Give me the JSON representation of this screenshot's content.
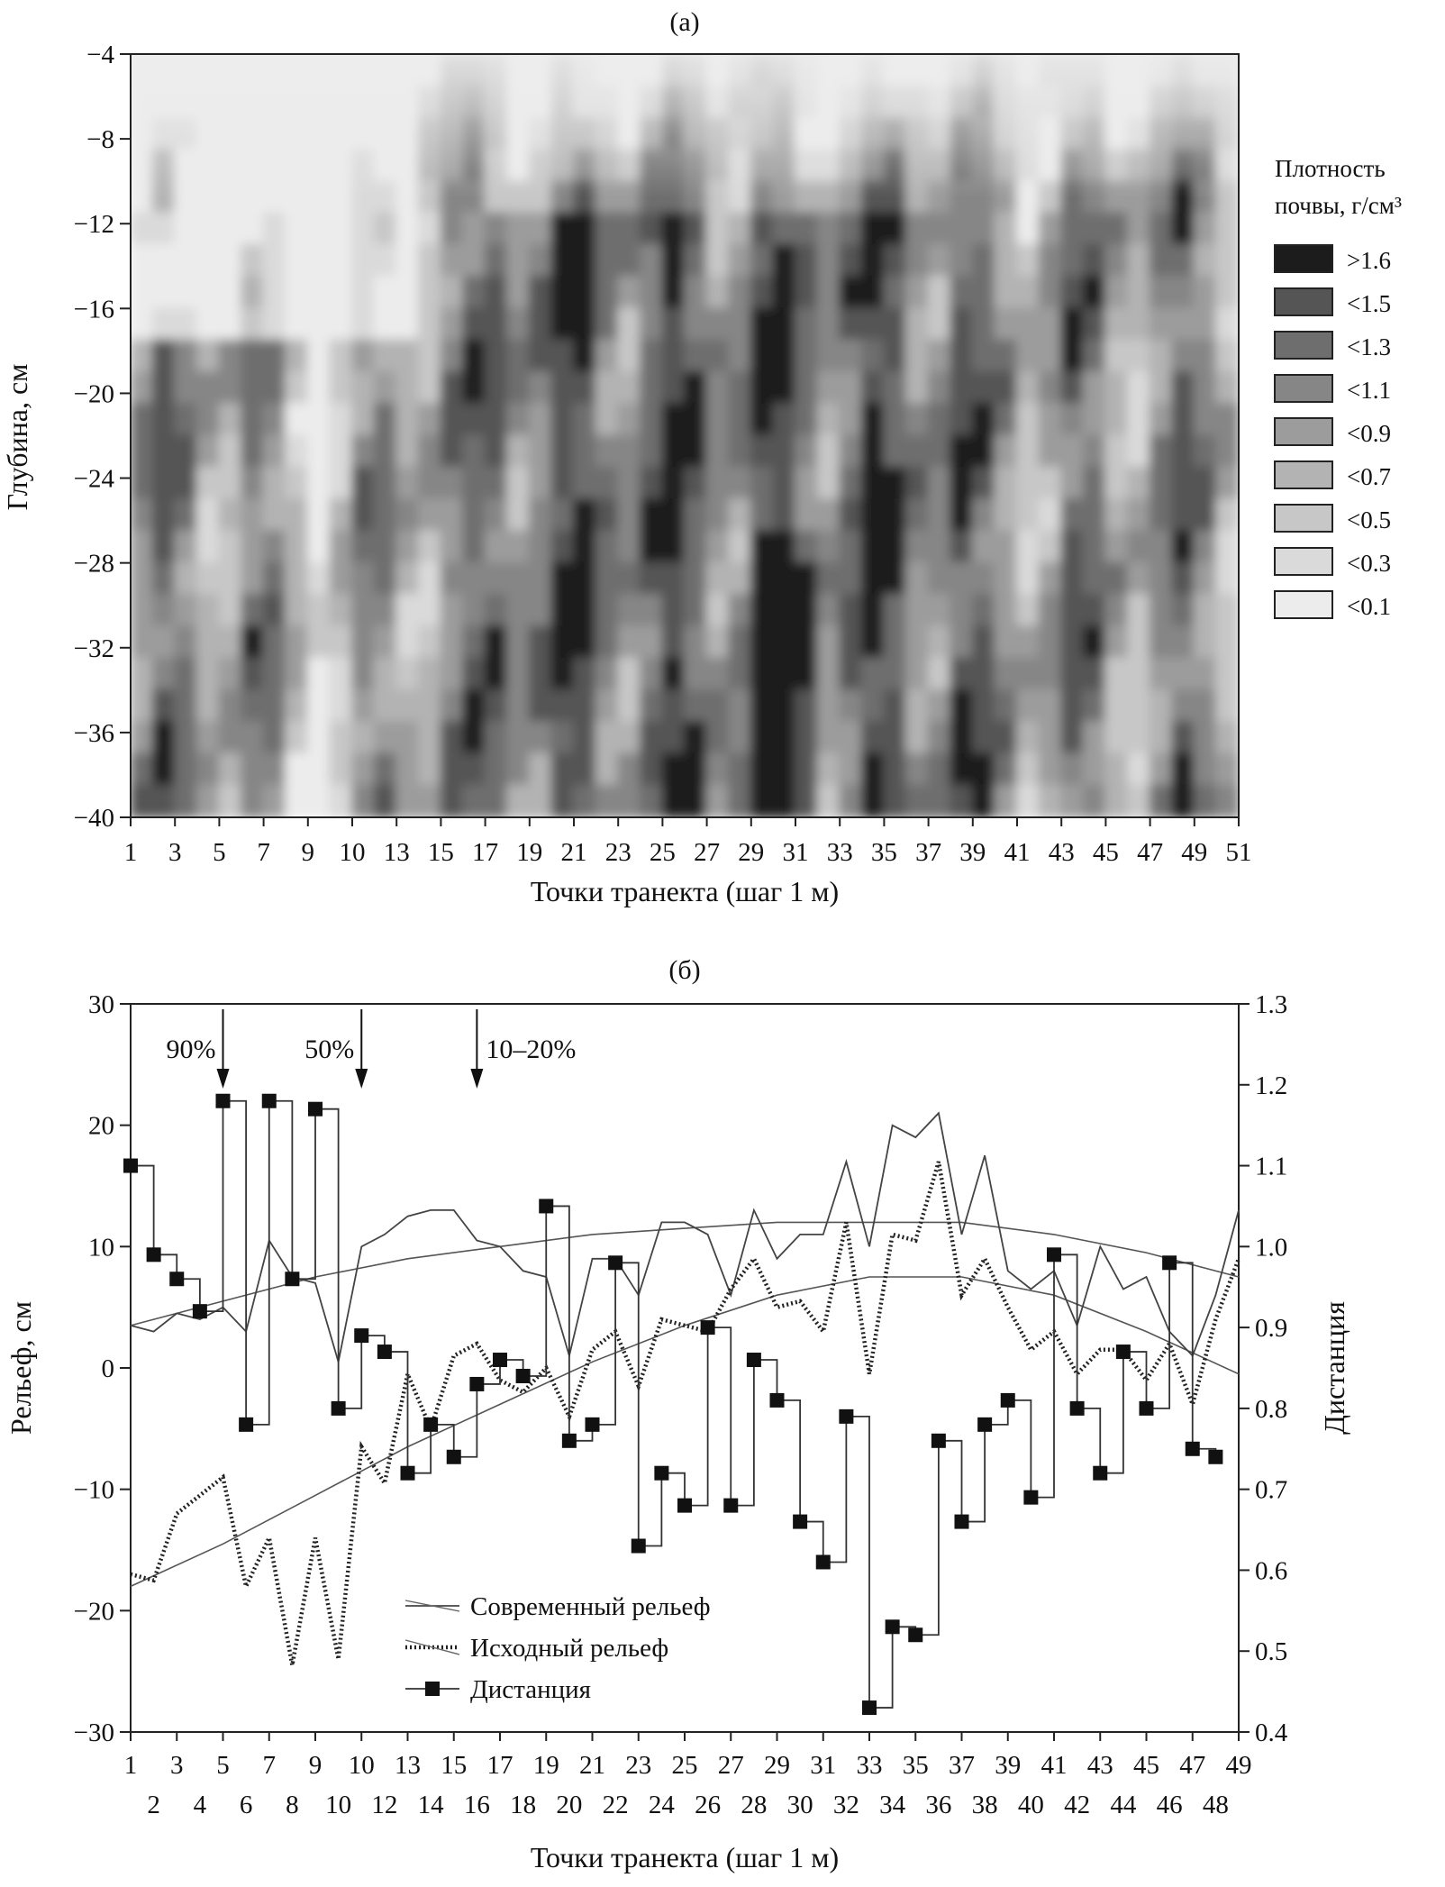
{
  "chart_data": [
    {
      "type": "heatmap",
      "panel_label": "(а)",
      "xlabel": "Точки транекта (шаг 1 м)",
      "ylabel": "Глубина, см",
      "x_ticks": [
        "1",
        "3",
        "5",
        "7",
        "9",
        "10",
        "13",
        "15",
        "17",
        "19",
        "21",
        "23",
        "25",
        "27",
        "29",
        "31",
        "33",
        "35",
        "37",
        "39",
        "41",
        "43",
        "45",
        "47",
        "49",
        "51"
      ],
      "y_ticks": [
        "−4",
        "−8",
        "−12",
        "−16",
        "−20",
        "−24",
        "−28",
        "−32",
        "−36",
        "−40"
      ],
      "xlim": [
        1,
        51
      ],
      "ylim": [
        -40,
        -4
      ],
      "legend_title": [
        "Плотность",
        "почвы, г/см³"
      ],
      "legend_position": "right",
      "legend": [
        {
          "label": ">1.6",
          "color": "#1c1c1c"
        },
        {
          "label": "<1.5",
          "color": "#555555"
        },
        {
          "label": "<1.3",
          "color": "#6e6e6e"
        },
        {
          "label": "<1.1",
          "color": "#868686"
        },
        {
          "label": "<0.9",
          "color": "#9c9c9c"
        },
        {
          "label": "<0.7",
          "color": "#b3b3b3"
        },
        {
          "label": "<0.5",
          "color": "#c7c7c7"
        },
        {
          "label": "<0.3",
          "color": "#dadada"
        },
        {
          "label": "<0.1",
          "color": "#ececec"
        }
      ],
      "grid": false
    },
    {
      "type": "line",
      "panel_label": "(б)",
      "xlabel": "Точки транекта (шаг 1 м)",
      "ylabel": "Рельеф, см",
      "ylabel_right": "Дистанция",
      "xlim": [
        1,
        49
      ],
      "ylim": [
        -30,
        30
      ],
      "ylim_right": [
        0.4,
        1.3
      ],
      "x_ticks_top_row": [
        "1",
        "3",
        "5",
        "7",
        "9",
        "10",
        "13",
        "15",
        "17",
        "19",
        "21",
        "23",
        "25",
        "27",
        "29",
        "31",
        "33",
        "35",
        "37",
        "39",
        "41",
        "43",
        "45",
        "47",
        "49"
      ],
      "x_ticks_bottom_row": [
        "2",
        "4",
        "6",
        "8",
        "10",
        "12",
        "14",
        "16",
        "18",
        "20",
        "22",
        "24",
        "26",
        "28",
        "30",
        "32",
        "34",
        "36",
        "38",
        "40",
        "42",
        "44",
        "46",
        "48"
      ],
      "y_ticks": [
        "30",
        "20",
        "10",
        "0",
        "−10",
        "−20",
        "−30"
      ],
      "y_ticks_right": [
        "1.3",
        "1.2",
        "1.1",
        "1.0",
        "0.9",
        "0.8",
        "0.7",
        "0.6",
        "0.5",
        "0.4"
      ],
      "annotations": [
        {
          "text": "90%",
          "x": 5
        },
        {
          "text": "50%",
          "x": 11
        },
        {
          "text": "10–20%",
          "x": 16
        }
      ],
      "legend_position": "bottom-center",
      "grid": false,
      "series": [
        {
          "name": "Современный рельеф",
          "style": "solid",
          "axis": "left",
          "x": [
            1,
            2,
            3,
            4,
            5,
            6,
            7,
            8,
            9,
            10,
            11,
            12,
            13,
            14,
            15,
            16,
            17,
            18,
            19,
            20,
            21,
            22,
            23,
            24,
            25,
            26,
            27,
            28,
            29,
            30,
            31,
            32,
            33,
            34,
            35,
            36,
            37,
            38,
            39,
            40,
            41,
            42,
            43,
            44,
            45,
            46,
            47,
            48,
            49
          ],
          "values": [
            3.5,
            3,
            4.5,
            4,
            5,
            3,
            10.5,
            7.5,
            7,
            0.5,
            10,
            11,
            12.5,
            13,
            13,
            10.5,
            10,
            8,
            7.5,
            1,
            9,
            9,
            6,
            12,
            12,
            11,
            6,
            13,
            9,
            11,
            11,
            17,
            10,
            20,
            19,
            21,
            11,
            17.5,
            8,
            6.5,
            8,
            3.5,
            10,
            6.5,
            7.5,
            3,
            1,
            6,
            13
          ]
        },
        {
          "name": "Исходный рельеф",
          "style": "dotted",
          "axis": "left",
          "x": [
            1,
            2,
            3,
            4,
            5,
            6,
            7,
            8,
            9,
            10,
            11,
            12,
            13,
            14,
            15,
            16,
            17,
            18,
            19,
            20,
            21,
            22,
            23,
            24,
            25,
            26,
            27,
            28,
            29,
            30,
            31,
            32,
            33,
            34,
            35,
            36,
            37,
            38,
            39,
            40,
            41,
            42,
            43,
            44,
            45,
            46,
            47,
            48,
            49
          ],
          "values": [
            -17,
            -17.5,
            -12,
            -10.5,
            -9,
            -18,
            -14,
            -24.5,
            -14,
            -24,
            -6.5,
            -9.5,
            -0.5,
            -5,
            1,
            2,
            -1,
            -2,
            0,
            -4,
            1.5,
            3,
            -1.5,
            4,
            3.5,
            3,
            6.5,
            9,
            5,
            5.5,
            3,
            12,
            -0.5,
            11,
            10.5,
            17,
            6,
            9,
            5,
            1.5,
            3,
            -0.5,
            1.5,
            1.5,
            -1,
            2,
            -3,
            4,
            9
          ]
        },
        {
          "name": "Дистанция",
          "style": "step-marker",
          "axis": "right",
          "x": [
            1,
            2,
            3,
            4,
            5,
            6,
            7,
            8,
            9,
            10,
            11,
            12,
            13,
            14,
            15,
            16,
            17,
            18,
            19,
            20,
            21,
            22,
            23,
            24,
            25,
            26,
            27,
            28,
            29,
            30,
            31,
            32,
            33,
            34,
            35,
            36,
            37,
            38,
            39,
            40,
            41,
            42,
            43,
            44,
            45,
            46,
            47,
            48
          ],
          "values": [
            1.1,
            0.99,
            0.96,
            0.92,
            1.18,
            0.78,
            1.18,
            0.96,
            1.17,
            0.8,
            0.89,
            0.87,
            0.72,
            0.78,
            0.74,
            0.83,
            0.86,
            0.84,
            1.05,
            0.76,
            0.78,
            0.98,
            0.63,
            0.72,
            0.68,
            0.9,
            0.68,
            0.86,
            0.81,
            0.66,
            0.61,
            0.79,
            0.43,
            0.53,
            0.52,
            0.76,
            0.66,
            0.78,
            0.81,
            0.69,
            0.99,
            0.8,
            0.72,
            0.87,
            0.8,
            0.98,
            0.75,
            0.74
          ]
        },
        {
          "name": "",
          "style": "trend",
          "axis": "left",
          "x": [
            1,
            5,
            9,
            13,
            17,
            21,
            25,
            29,
            33,
            37,
            41,
            45,
            49
          ],
          "values": [
            3.5,
            5.5,
            7.5,
            9,
            10,
            11,
            11.5,
            12,
            12,
            12,
            11,
            9.5,
            7.5
          ]
        },
        {
          "name": "",
          "style": "trend",
          "axis": "left",
          "x": [
            1,
            5,
            9,
            13,
            17,
            21,
            25,
            29,
            33,
            37,
            41,
            45,
            49
          ],
          "values": [
            -18,
            -14.5,
            -10.5,
            -6.5,
            -3,
            0.5,
            3.5,
            6,
            7.5,
            7.5,
            6,
            3,
            -0.5
          ]
        }
      ]
    }
  ]
}
